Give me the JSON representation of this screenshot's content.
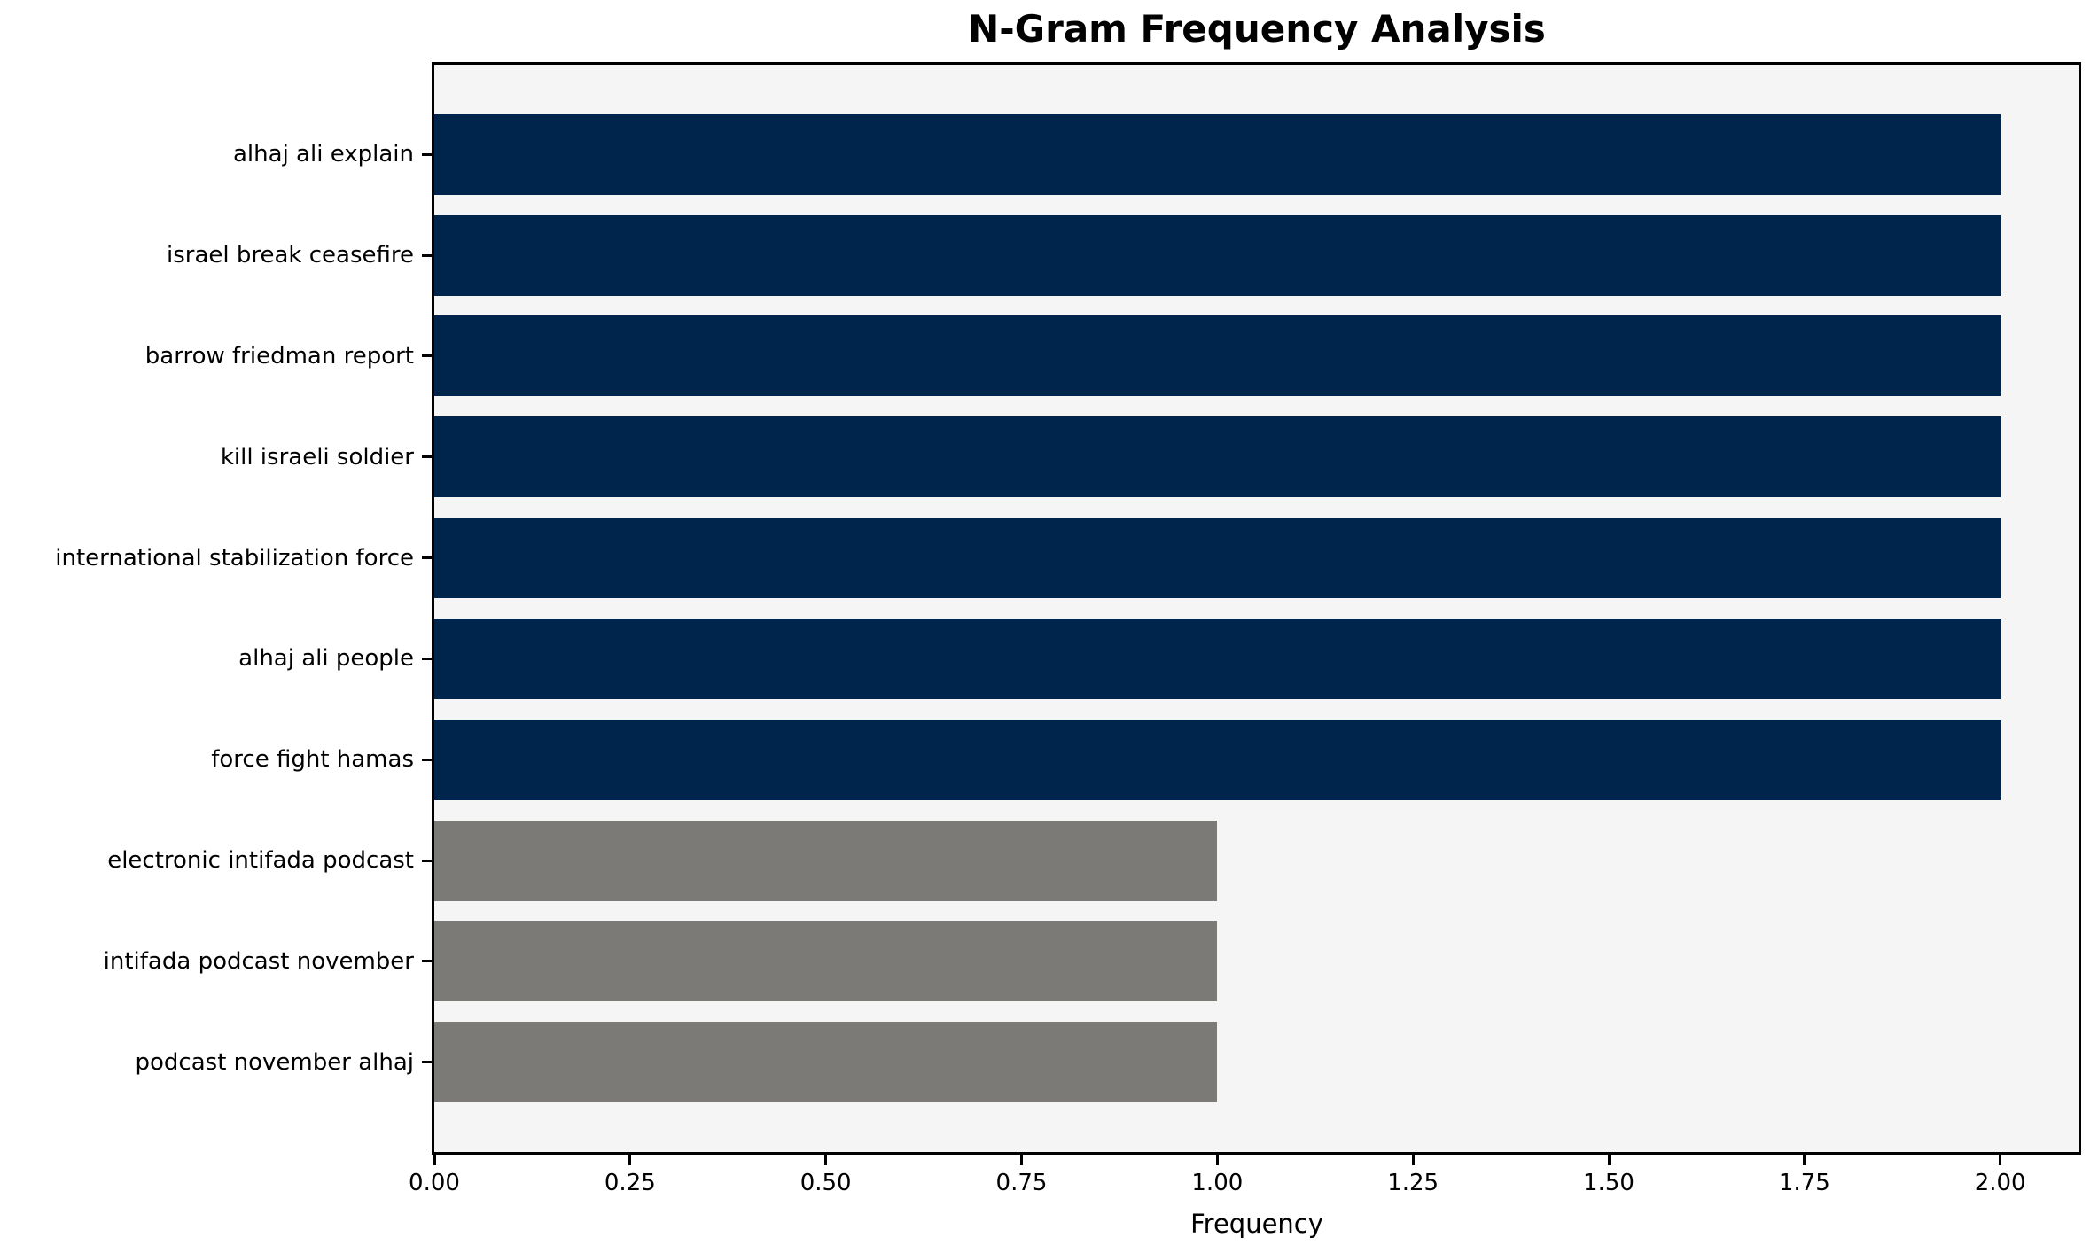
{
  "chart_data": {
    "type": "bar",
    "orientation": "horizontal",
    "title": "N-Gram Frequency Analysis",
    "xlabel": "Frequency",
    "ylabel": "",
    "categories": [
      "alhaj ali explain",
      "israel break ceasefire",
      "barrow friedman report",
      "kill israeli soldier",
      "international stabilization force",
      "alhaj ali people",
      "force fight hamas",
      "electronic intifada podcast",
      "intifada podcast november",
      "podcast november alhaj"
    ],
    "values": [
      2,
      2,
      2,
      2,
      2,
      2,
      2,
      1,
      1,
      1
    ],
    "bar_colors": [
      "#00254d",
      "#00254d",
      "#00254d",
      "#00254d",
      "#00254d",
      "#00254d",
      "#00254d",
      "#7b7a76",
      "#7b7a76",
      "#7b7a76"
    ],
    "x_ticks": [
      {
        "value": 0.0,
        "label": "0.00"
      },
      {
        "value": 0.25,
        "label": "0.25"
      },
      {
        "value": 0.5,
        "label": "0.50"
      },
      {
        "value": 0.75,
        "label": "0.75"
      },
      {
        "value": 1.0,
        "label": "1.00"
      },
      {
        "value": 1.25,
        "label": "1.25"
      },
      {
        "value": 1.5,
        "label": "1.50"
      },
      {
        "value": 1.75,
        "label": "1.75"
      },
      {
        "value": 2.0,
        "label": "2.00"
      }
    ],
    "xlim": [
      0,
      2.1
    ],
    "grid": false,
    "legend": false,
    "colors": {
      "bar_high_frequency": "#00254d",
      "bar_low_frequency": "#7b7a76",
      "plot_background": "#f5f5f5",
      "figure_background": "#ffffff",
      "axis": "#000000"
    }
  }
}
